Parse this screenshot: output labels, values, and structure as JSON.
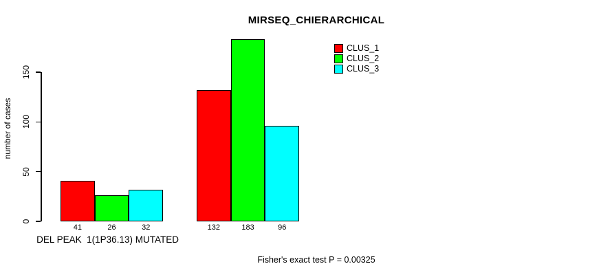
{
  "chart_data": {
    "type": "bar",
    "title": "MIRSEQ_CHIERARCHICAL",
    "ylabel": "number of cases",
    "xlabel": "",
    "ylim": [
      0,
      190
    ],
    "yticks": [
      0,
      50,
      100,
      150
    ],
    "grid": false,
    "categories": [
      "DEL PEAK  1(1P36.13) MUTATED",
      ""
    ],
    "series": [
      {
        "name": "CLUS_1",
        "color": "#ff0000",
        "values": [
          41,
          132
        ]
      },
      {
        "name": "CLUS_2",
        "color": "#00ff00",
        "values": [
          26,
          183
        ]
      },
      {
        "name": "CLUS_3",
        "color": "#00ffff",
        "values": [
          32,
          96
        ]
      }
    ],
    "bar_value_labels": [
      [
        "41",
        "26",
        "32"
      ],
      [
        "132",
        "183",
        "96"
      ]
    ],
    "legend": {
      "position": "top-right",
      "entries": [
        {
          "label": "CLUS_1",
          "color": "#ff0000"
        },
        {
          "label": "CLUS_2",
          "color": "#00ff00"
        },
        {
          "label": "CLUS_3",
          "color": "#00ffff"
        }
      ]
    },
    "annotation": "Fisher's exact test P = 0.00325"
  }
}
